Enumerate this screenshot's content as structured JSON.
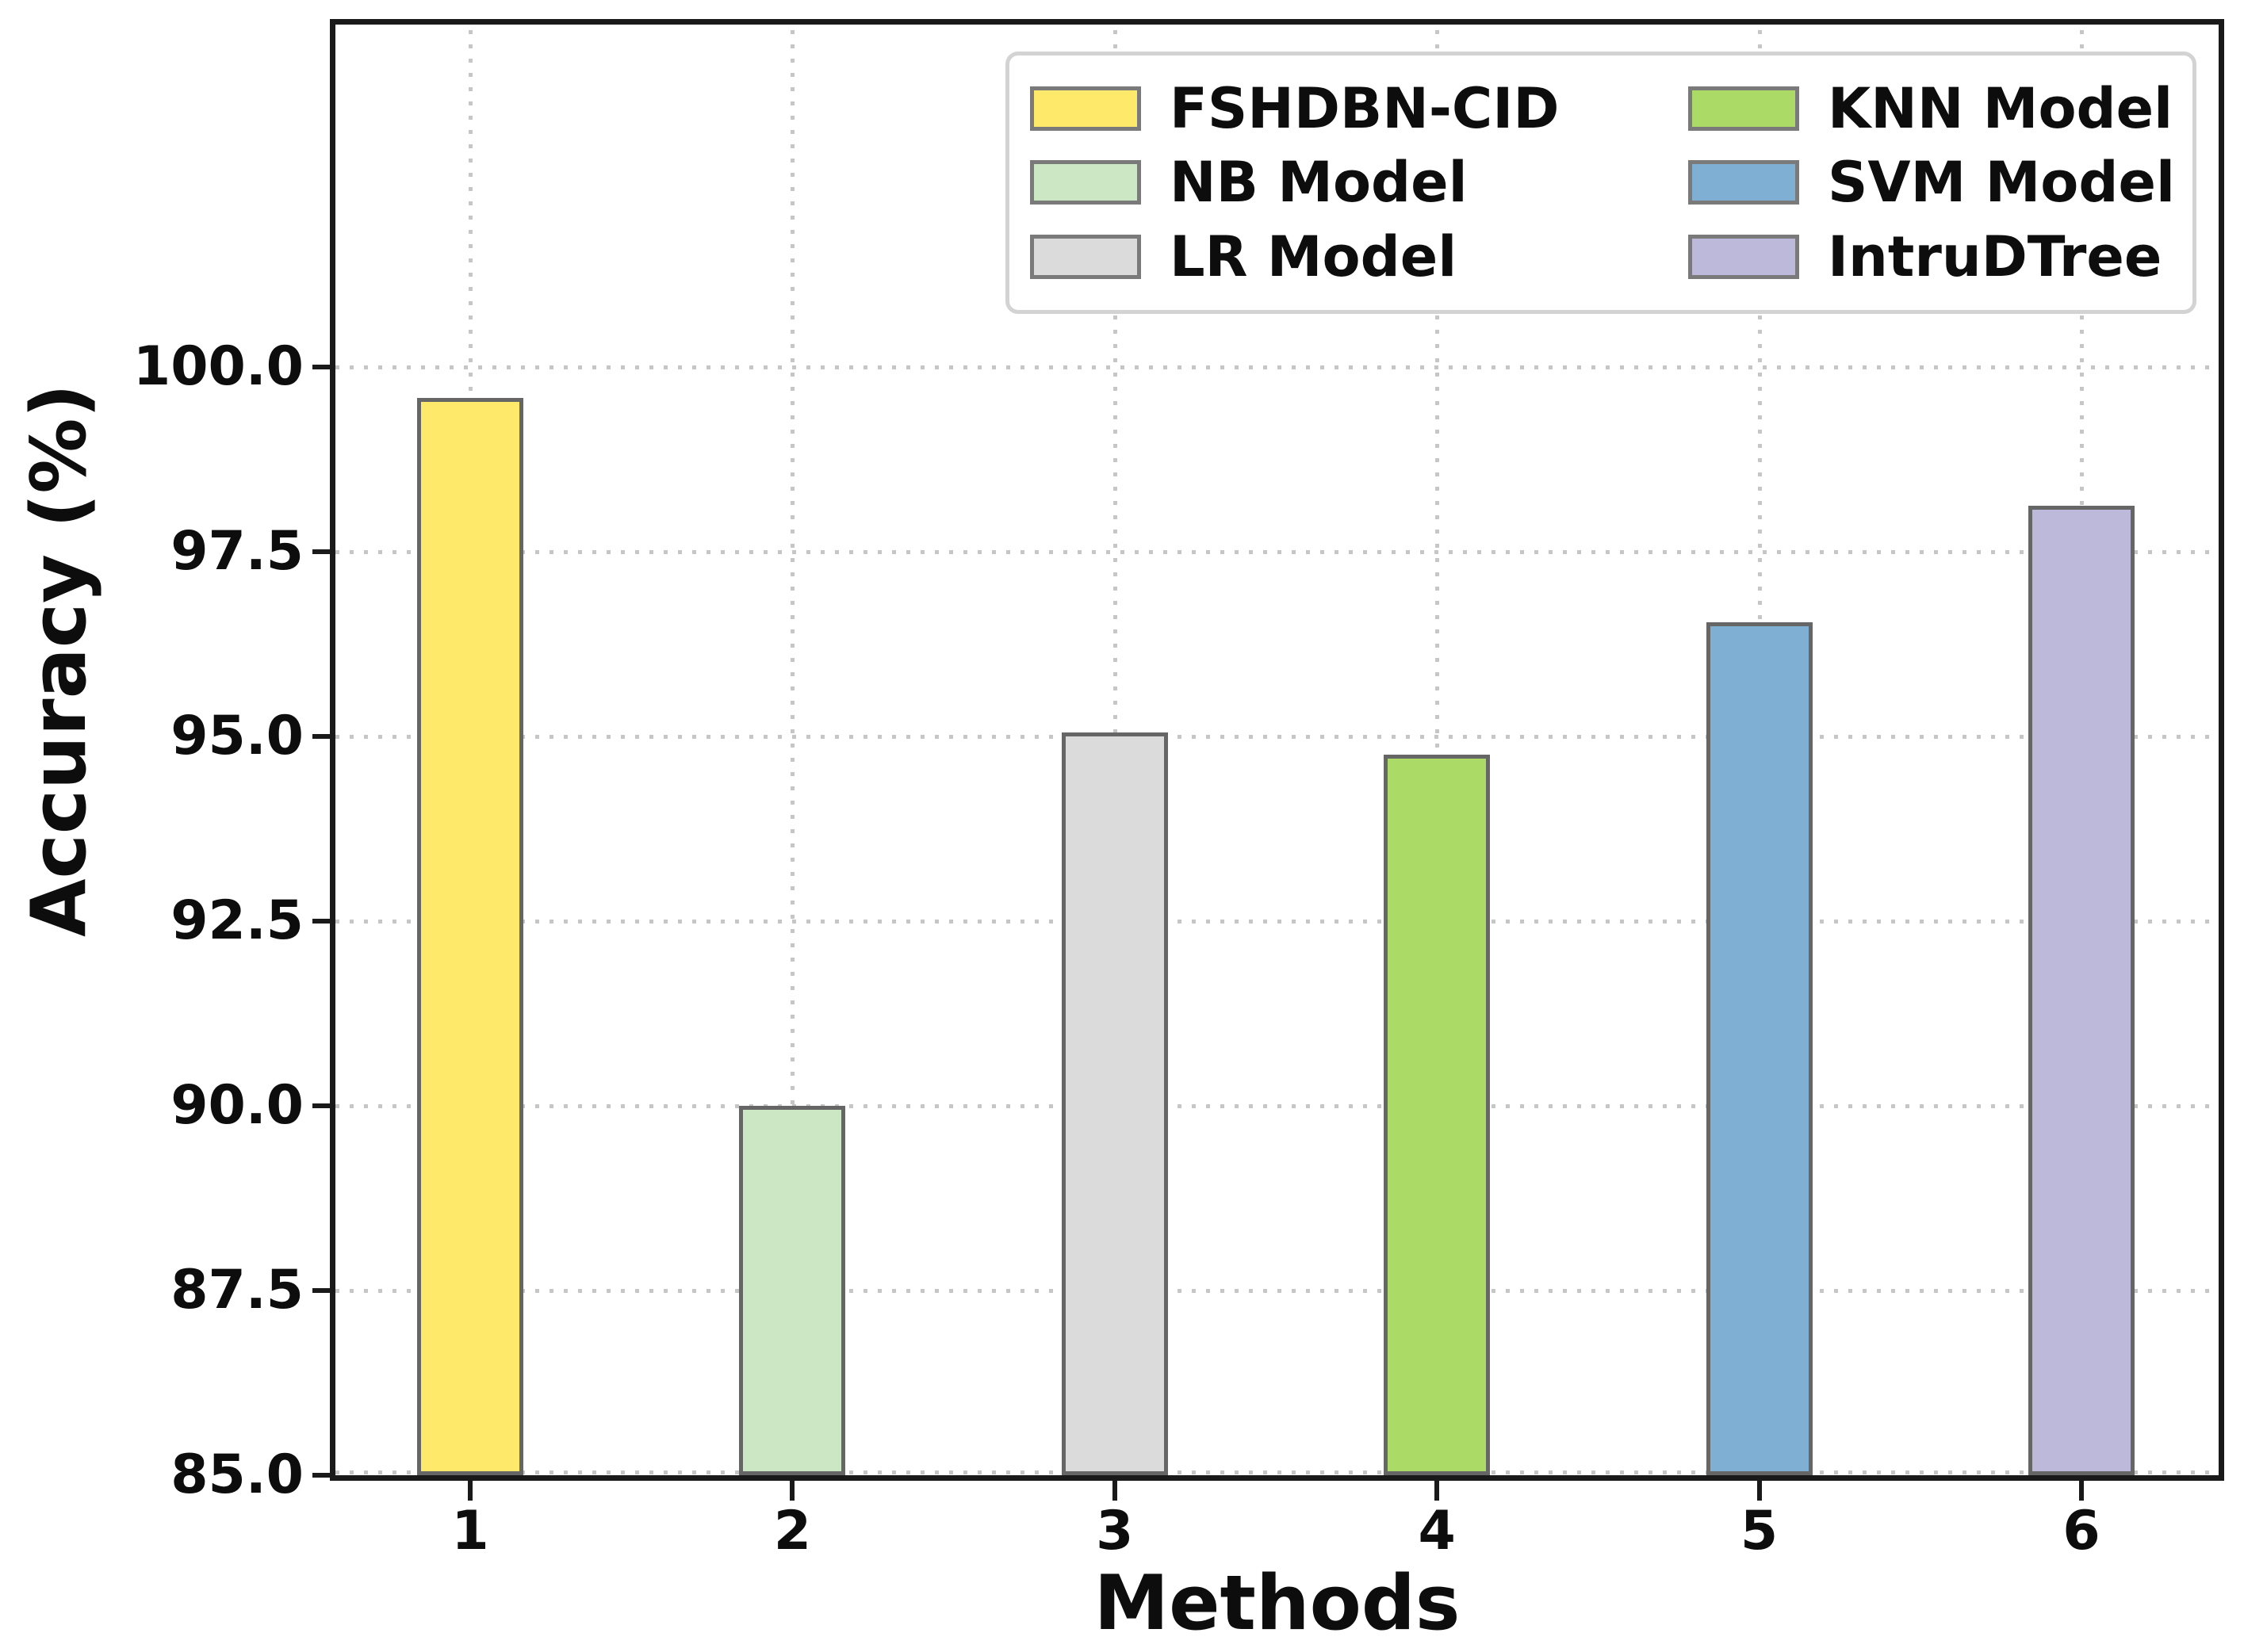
{
  "chart_data": {
    "type": "bar",
    "title": "",
    "xlabel": "Methods",
    "ylabel": "Accuracy (%)",
    "categories": [
      "1",
      "2",
      "3",
      "4",
      "5",
      "6"
    ],
    "series": [
      {
        "name": "FSHDBN-CID",
        "value": 99.58,
        "color": "#FEE96A"
      },
      {
        "name": "NB Model",
        "value": 90.0,
        "color": "#CBE7C3"
      },
      {
        "name": "LR Model",
        "value": 95.05,
        "color": "#DBDBDB"
      },
      {
        "name": "KNN Model",
        "value": 94.75,
        "color": "#ACDA66"
      },
      {
        "name": "SVM Model",
        "value": 96.55,
        "color": "#7FAFD2"
      },
      {
        "name": "IntruDTree",
        "value": 98.12,
        "color": "#BDB9DA"
      }
    ],
    "ylim": [
      85.0,
      104.6
    ],
    "yticks": [
      85.0,
      87.5,
      90.0,
      92.5,
      95.0,
      97.5,
      100.0
    ],
    "ytick_labels": [
      "85.0",
      "87.5",
      "90.0",
      "92.5",
      "95.0",
      "97.5",
      "100.0"
    ],
    "grid": true,
    "grid_style": "dotted",
    "legend_position": "upper right",
    "legend_columns": 2,
    "bar_edge_color": "#666666",
    "text_color": "#0d0d0d"
  }
}
